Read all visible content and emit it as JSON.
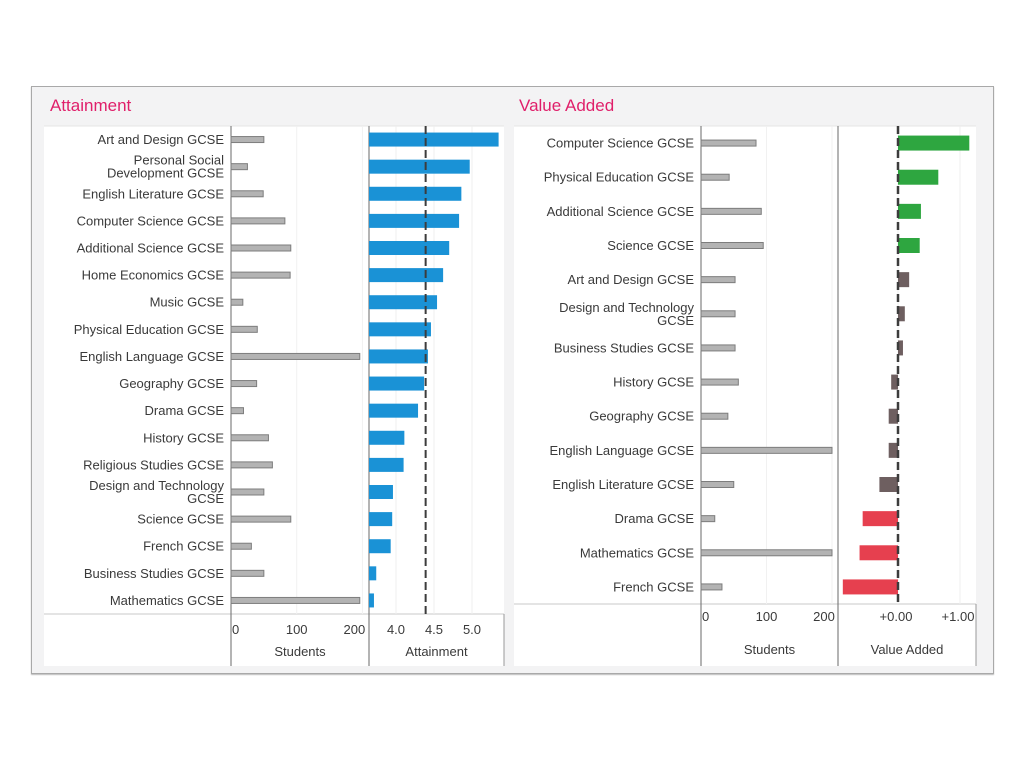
{
  "chart_data": [
    {
      "type": "bar",
      "title": "Attainment",
      "orientation": "horizontal",
      "categories": [
        "Art and Design GCSE",
        "Personal Social Development GCSE",
        "English Literature GCSE",
        "Computer Science GCSE",
        "Additional Science GCSE",
        "Home Economics GCSE",
        "Music GCSE",
        "Physical Education GCSE",
        "English Language GCSE",
        "Geography GCSE",
        "Drama GCSE",
        "History GCSE",
        "Religious Studies GCSE",
        "Design and Technology GCSE",
        "Science GCSE",
        "French GCSE",
        "Business Studies GCSE",
        "Mathematics GCSE"
      ],
      "category_lines": [
        [
          "Art and Design GCSE"
        ],
        [
          "Personal Social",
          "Development GCSE"
        ],
        [
          "English Literature GCSE"
        ],
        [
          "Computer Science GCSE"
        ],
        [
          "Additional Science GCSE"
        ],
        [
          "Home Economics GCSE"
        ],
        [
          "Music GCSE"
        ],
        [
          "Physical Education GCSE"
        ],
        [
          "English Language GCSE"
        ],
        [
          "Geography GCSE"
        ],
        [
          "Drama GCSE"
        ],
        [
          "History GCSE"
        ],
        [
          "Religious Studies GCSE"
        ],
        [
          "Design and Technology",
          "GCSE"
        ],
        [
          "Science GCSE"
        ],
        [
          "French GCSE"
        ],
        [
          "Business Studies GCSE"
        ],
        [
          "Mathematics GCSE"
        ]
      ],
      "series": [
        {
          "name": "Students",
          "color": "#9a9a9a",
          "values": [
            50,
            25,
            49,
            82,
            91,
            90,
            18,
            40,
            196,
            39,
            19,
            57,
            63,
            50,
            91,
            31,
            50,
            196
          ]
        },
        {
          "name": "Attainment",
          "color": "#1a92d6",
          "values": [
            5.35,
            4.97,
            4.86,
            4.83,
            4.7,
            4.62,
            4.54,
            4.46,
            4.42,
            4.37,
            4.29,
            4.11,
            4.1,
            3.96,
            3.95,
            3.93,
            3.74,
            3.71
          ]
        }
      ],
      "students_axis": {
        "label": "Students",
        "ticks": [
          "0",
          "100",
          "200"
        ],
        "range": [
          0,
          200
        ]
      },
      "value_axis": {
        "label": "Attainment",
        "ticks": [
          "4.0",
          "4.5",
          "5.0"
        ],
        "range": [
          3.64,
          5.4
        ],
        "reference_line": 4.39
      },
      "grid": true
    },
    {
      "type": "bar",
      "title": "Value Added",
      "orientation": "horizontal",
      "categories": [
        "Computer Science GCSE",
        "Physical Education GCSE",
        "Additional Science GCSE",
        "Science GCSE",
        "Art and Design GCSE",
        "Design and Technology GCSE",
        "Business Studies GCSE",
        "History GCSE",
        "Geography GCSE",
        "English Language GCSE",
        "English Literature GCSE",
        "Drama GCSE",
        "Mathematics GCSE",
        "French GCSE"
      ],
      "category_lines": [
        [
          "Computer Science GCSE"
        ],
        [
          "Physical Education GCSE"
        ],
        [
          "Additional Science GCSE"
        ],
        [
          "Science GCSE"
        ],
        [
          "Art and Design GCSE"
        ],
        [
          "Design and Technology",
          "GCSE"
        ],
        [
          "Business Studies GCSE"
        ],
        [
          "History GCSE"
        ],
        [
          "Geography GCSE"
        ],
        [
          "English Language GCSE"
        ],
        [
          "English Literature GCSE"
        ],
        [
          "Drama GCSE"
        ],
        [
          "Mathematics GCSE"
        ],
        [
          "French GCSE"
        ]
      ],
      "series": [
        {
          "name": "Students",
          "color": "#9a9a9a",
          "values": [
            84,
            43,
            92,
            95,
            52,
            52,
            52,
            57,
            41,
            200,
            50,
            21,
            200,
            32
          ]
        },
        {
          "name": "Value Added",
          "values": [
            1.15,
            0.65,
            0.37,
            0.35,
            0.18,
            0.11,
            0.08,
            -0.11,
            -0.15,
            -0.15,
            -0.3,
            -0.57,
            -0.62,
            -0.89
          ],
          "status": [
            "positive",
            "positive",
            "positive",
            "positive",
            "neutral",
            "neutral",
            "neutral",
            "neutral",
            "neutral",
            "neutral",
            "neutral",
            "negative",
            "negative",
            "negative"
          ]
        }
      ],
      "status_colors": {
        "positive": "#2ea640",
        "neutral": "#6e5f60",
        "negative": "#e6404f"
      },
      "students_axis": {
        "label": "Students",
        "ticks": [
          "0",
          "100",
          "200"
        ],
        "range": [
          0,
          200
        ]
      },
      "value_axis": {
        "label": "Value Added",
        "ticks": [
          "+0.00",
          "+1.00"
        ],
        "tick_values": [
          0,
          1
        ],
        "range": [
          -0.9,
          1.25
        ],
        "reference_line": 0
      },
      "grid": true
    }
  ]
}
